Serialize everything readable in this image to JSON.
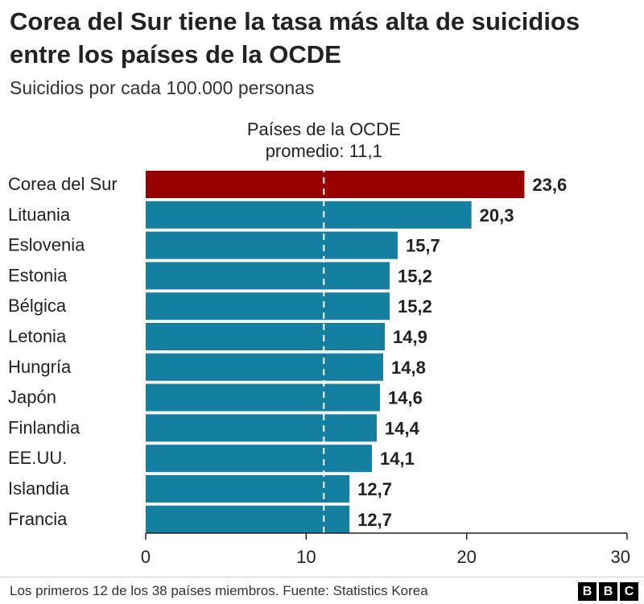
{
  "header": {
    "title": "Corea del Sur tiene la tasa más alta de suicidios entre los países de la OCDE",
    "subtitle": "Suicidios por cada 100.000 personas"
  },
  "footer": {
    "note": "Los primeros 12 de los 38 países miembros. Fuente: Statistics Korea",
    "logo_letters": [
      "B",
      "B",
      "C"
    ]
  },
  "chart_data": {
    "type": "bar",
    "orientation": "horizontal",
    "categories": [
      "Corea del Sur",
      "Lituania",
      "Eslovenia",
      "Estonia",
      "Bélgica",
      "Letonia",
      "Hungría",
      "Japón",
      "Finlandia",
      "EE.UU.",
      "Islandia",
      "Francia"
    ],
    "values": [
      23.6,
      20.3,
      15.7,
      15.2,
      15.2,
      14.9,
      14.8,
      14.6,
      14.4,
      14.1,
      12.7,
      12.7
    ],
    "value_labels": [
      "23,6",
      "20,3",
      "15,7",
      "15,2",
      "15,2",
      "14,9",
      "14,8",
      "14,6",
      "14,4",
      "14,1",
      "12,7",
      "12,7"
    ],
    "xlim": [
      0,
      30
    ],
    "xticks": [
      0,
      10,
      20,
      30
    ],
    "xtick_labels": [
      "0",
      "10",
      "20",
      "30"
    ],
    "grid": false,
    "highlight_category": "Corea del Sur",
    "colors": {
      "highlight": "#990000",
      "bar": "#1380a1",
      "reference_line": "#ffffff",
      "axis": "#222222"
    },
    "reference_line": {
      "value": 11.1,
      "style": "dashed",
      "label_lines": [
        "Países de la OCDE",
        "promedio: 11,1"
      ]
    }
  }
}
